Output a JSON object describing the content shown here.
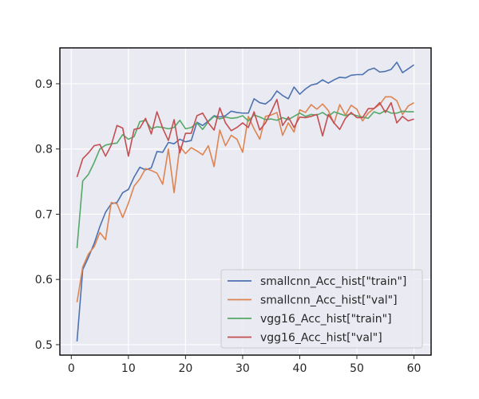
{
  "chart_data": {
    "type": "line",
    "title": "",
    "xlabel": "",
    "ylabel": "",
    "xlim": [
      -2,
      63
    ],
    "ylim": [
      0.484,
      0.955
    ],
    "xticks": [
      0,
      10,
      20,
      30,
      40,
      50,
      60
    ],
    "yticks": [
      0.5,
      0.6,
      0.7,
      0.8,
      0.9
    ],
    "ytick_labels": [
      "0.5",
      "0.6",
      "0.7",
      "0.8",
      "0.9"
    ],
    "grid": true,
    "legend_position": "lower-right",
    "x": [
      1,
      2,
      3,
      4,
      5,
      6,
      7,
      8,
      9,
      10,
      11,
      12,
      13,
      14,
      15,
      16,
      17,
      18,
      19,
      20,
      21,
      22,
      23,
      24,
      25,
      26,
      27,
      28,
      29,
      30,
      31,
      32,
      33,
      34,
      35,
      36,
      37,
      38,
      39,
      40,
      41,
      42,
      43,
      44,
      45,
      46,
      47,
      48,
      49,
      50,
      51,
      52,
      53,
      54,
      55,
      56,
      57,
      58,
      59,
      60
    ],
    "series": [
      {
        "name": "smallcnn_Acc_hist[\"train\"]",
        "color": "#4c72b0",
        "values": [
          0.505,
          0.615,
          0.634,
          0.655,
          0.681,
          0.703,
          0.716,
          0.718,
          0.733,
          0.738,
          0.757,
          0.772,
          0.768,
          0.771,
          0.796,
          0.795,
          0.81,
          0.808,
          0.815,
          0.811,
          0.813,
          0.841,
          0.836,
          0.843,
          0.851,
          0.849,
          0.851,
          0.858,
          0.856,
          0.855,
          0.855,
          0.877,
          0.871,
          0.869,
          0.876,
          0.889,
          0.882,
          0.877,
          0.895,
          0.884,
          0.892,
          0.898,
          0.9,
          0.906,
          0.901,
          0.906,
          0.91,
          0.909,
          0.913,
          0.914,
          0.914,
          0.921,
          0.924,
          0.918,
          0.919,
          0.922,
          0.933,
          0.917,
          0.923,
          0.929
        ]
      },
      {
        "name": "smallcnn_Acc_hist[\"val\"]",
        "color": "#dd8452",
        "values": [
          0.565,
          0.619,
          0.639,
          0.65,
          0.672,
          0.661,
          0.718,
          0.716,
          0.695,
          0.717,
          0.743,
          0.754,
          0.77,
          0.767,
          0.763,
          0.746,
          0.8,
          0.733,
          0.804,
          0.793,
          0.802,
          0.797,
          0.791,
          0.805,
          0.773,
          0.829,
          0.805,
          0.821,
          0.815,
          0.795,
          0.85,
          0.831,
          0.815,
          0.85,
          0.852,
          0.856,
          0.821,
          0.84,
          0.826,
          0.86,
          0.856,
          0.868,
          0.861,
          0.869,
          0.859,
          0.839,
          0.868,
          0.852,
          0.867,
          0.861,
          0.843,
          0.855,
          0.862,
          0.868,
          0.88,
          0.88,
          0.874,
          0.853,
          0.866,
          0.871
        ]
      },
      {
        "name": "vgg16_Acc_hist[\"train\"]",
        "color": "#55a868",
        "values": [
          0.648,
          0.751,
          0.761,
          0.779,
          0.8,
          0.806,
          0.808,
          0.809,
          0.822,
          0.815,
          0.819,
          0.842,
          0.844,
          0.831,
          0.834,
          0.833,
          0.831,
          0.833,
          0.844,
          0.831,
          0.833,
          0.84,
          0.83,
          0.842,
          0.85,
          0.846,
          0.849,
          0.847,
          0.848,
          0.851,
          0.843,
          0.852,
          0.849,
          0.845,
          0.846,
          0.844,
          0.848,
          0.845,
          0.85,
          0.855,
          0.85,
          0.853,
          0.852,
          0.856,
          0.85,
          0.857,
          0.854,
          0.851,
          0.854,
          0.851,
          0.849,
          0.847,
          0.857,
          0.854,
          0.859,
          0.855,
          0.855,
          0.858,
          0.857,
          0.857
        ]
      },
      {
        "name": "vgg16_Acc_hist[\"val\"]",
        "color": "#c44e52",
        "values": [
          0.757,
          0.785,
          0.794,
          0.805,
          0.807,
          0.789,
          0.806,
          0.836,
          0.832,
          0.789,
          0.83,
          0.832,
          0.847,
          0.823,
          0.857,
          0.832,
          0.813,
          0.845,
          0.794,
          0.824,
          0.824,
          0.851,
          0.855,
          0.84,
          0.829,
          0.863,
          0.84,
          0.828,
          0.833,
          0.84,
          0.833,
          0.857,
          0.829,
          0.84,
          0.857,
          0.876,
          0.836,
          0.849,
          0.833,
          0.849,
          0.848,
          0.85,
          0.853,
          0.82,
          0.853,
          0.84,
          0.83,
          0.847,
          0.856,
          0.848,
          0.848,
          0.862,
          0.862,
          0.871,
          0.856,
          0.871,
          0.84,
          0.85,
          0.843,
          0.846
        ]
      }
    ]
  }
}
